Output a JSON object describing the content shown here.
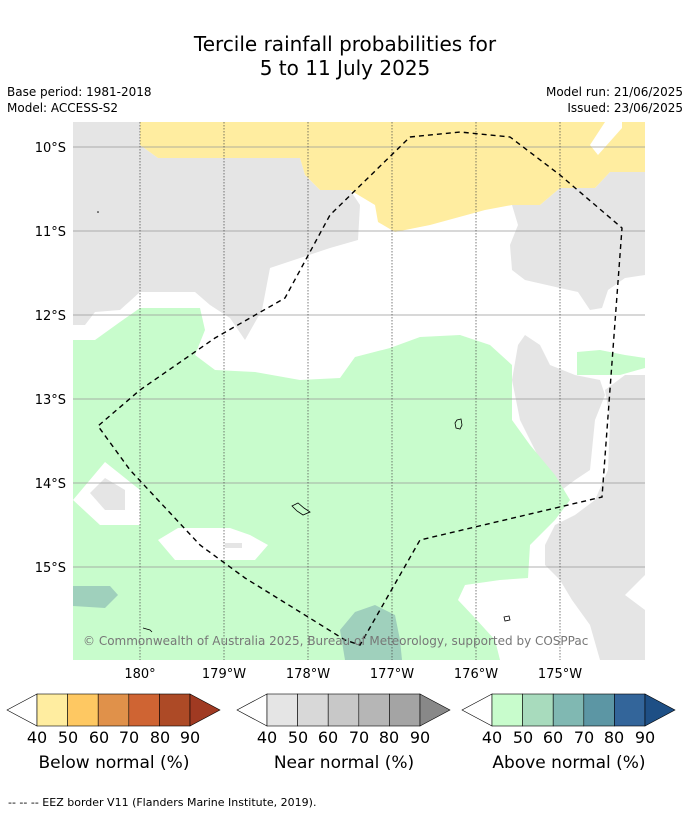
{
  "title_line1": "Tercile rainfall probabilities for",
  "title_line2": "5 to 11 July 2025",
  "base_period": "Base period: 1981-2018",
  "model": "Model: ACCESS-S2",
  "model_run": "Model run: 21/06/2025",
  "issued": "Issued: 23/06/2025",
  "map": {
    "lat_labels": [
      "10°S",
      "11°S",
      "12°S",
      "13°S",
      "14°S",
      "15°S"
    ],
    "lon_labels": [
      "180°",
      "179°W",
      "178°W",
      "177°W",
      "176°W",
      "175°W"
    ],
    "copyright": "© Commonwealth of Australia 2025, Bureau of Meteorology, supported by COSPPac",
    "colors": {
      "below_normal_40": "#ffeda0",
      "near_normal_40": "#e5e5e5",
      "above_normal_40": "#c8fccc",
      "above_normal_50": "#9fd0bc",
      "eez_border": "#000000"
    }
  },
  "colorbars": [
    {
      "label": "Below normal (%)",
      "ticks": [
        "40",
        "50",
        "60",
        "70",
        "80",
        "90"
      ],
      "colors": [
        "#ffffff",
        "#ffeda0",
        "#fec862",
        "#e0914a",
        "#cf6433",
        "#ad4a26",
        "#a03a22"
      ]
    },
    {
      "label": "Near normal (%)",
      "ticks": [
        "40",
        "50",
        "60",
        "70",
        "80",
        "90"
      ],
      "colors": [
        "#ffffff",
        "#e5e5e5",
        "#d8d8d8",
        "#c8c8c8",
        "#b6b6b6",
        "#a4a4a4",
        "#888888"
      ]
    },
    {
      "label": "Above normal (%)",
      "ticks": [
        "40",
        "50",
        "60",
        "70",
        "80",
        "90"
      ],
      "colors": [
        "#ffffff",
        "#c8fccc",
        "#a8dbbd",
        "#80b8b2",
        "#5c96a4",
        "#33659a",
        "#1e4f85"
      ]
    }
  ],
  "footer": "--  --  -- EEZ border V11 (Flanders Marine Institute, 2019)."
}
